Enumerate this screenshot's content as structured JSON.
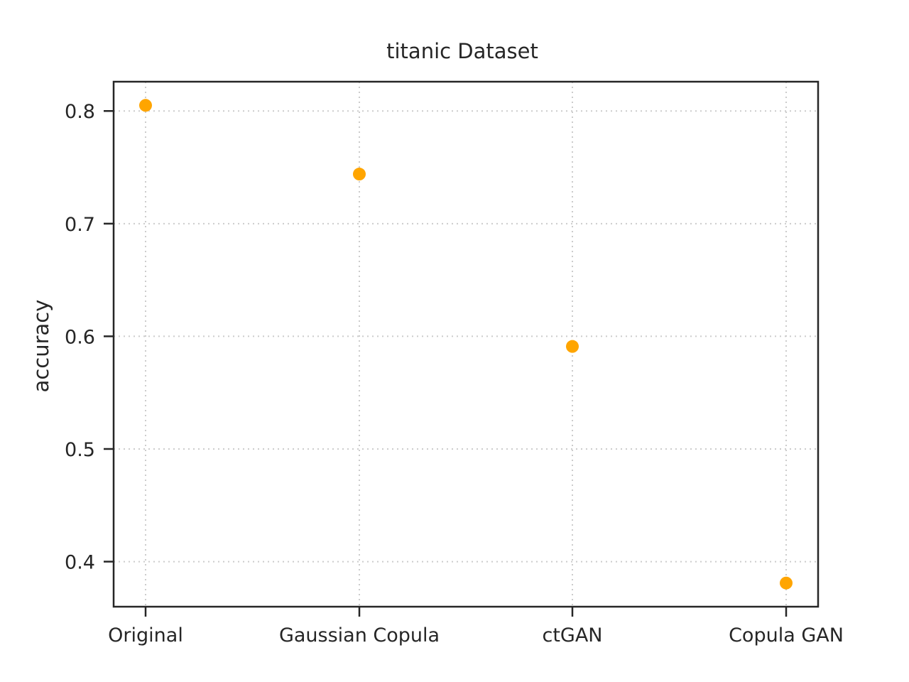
{
  "chart_data": {
    "type": "scatter",
    "title": "titanic Dataset",
    "xlabel": "",
    "ylabel": "accuracy",
    "categories": [
      "Original",
      "Gaussian Copula",
      "ctGAN",
      "Copula GAN"
    ],
    "values": [
      0.805,
      0.744,
      0.591,
      0.381
    ],
    "ylim": [
      0.36,
      0.826
    ],
    "yticks": [
      0.4,
      0.5,
      0.6,
      0.7,
      0.8
    ],
    "ytick_labels": [
      "0.4",
      "0.5",
      "0.6",
      "0.7",
      "0.8"
    ],
    "grid": true,
    "color": "#ffa500"
  }
}
